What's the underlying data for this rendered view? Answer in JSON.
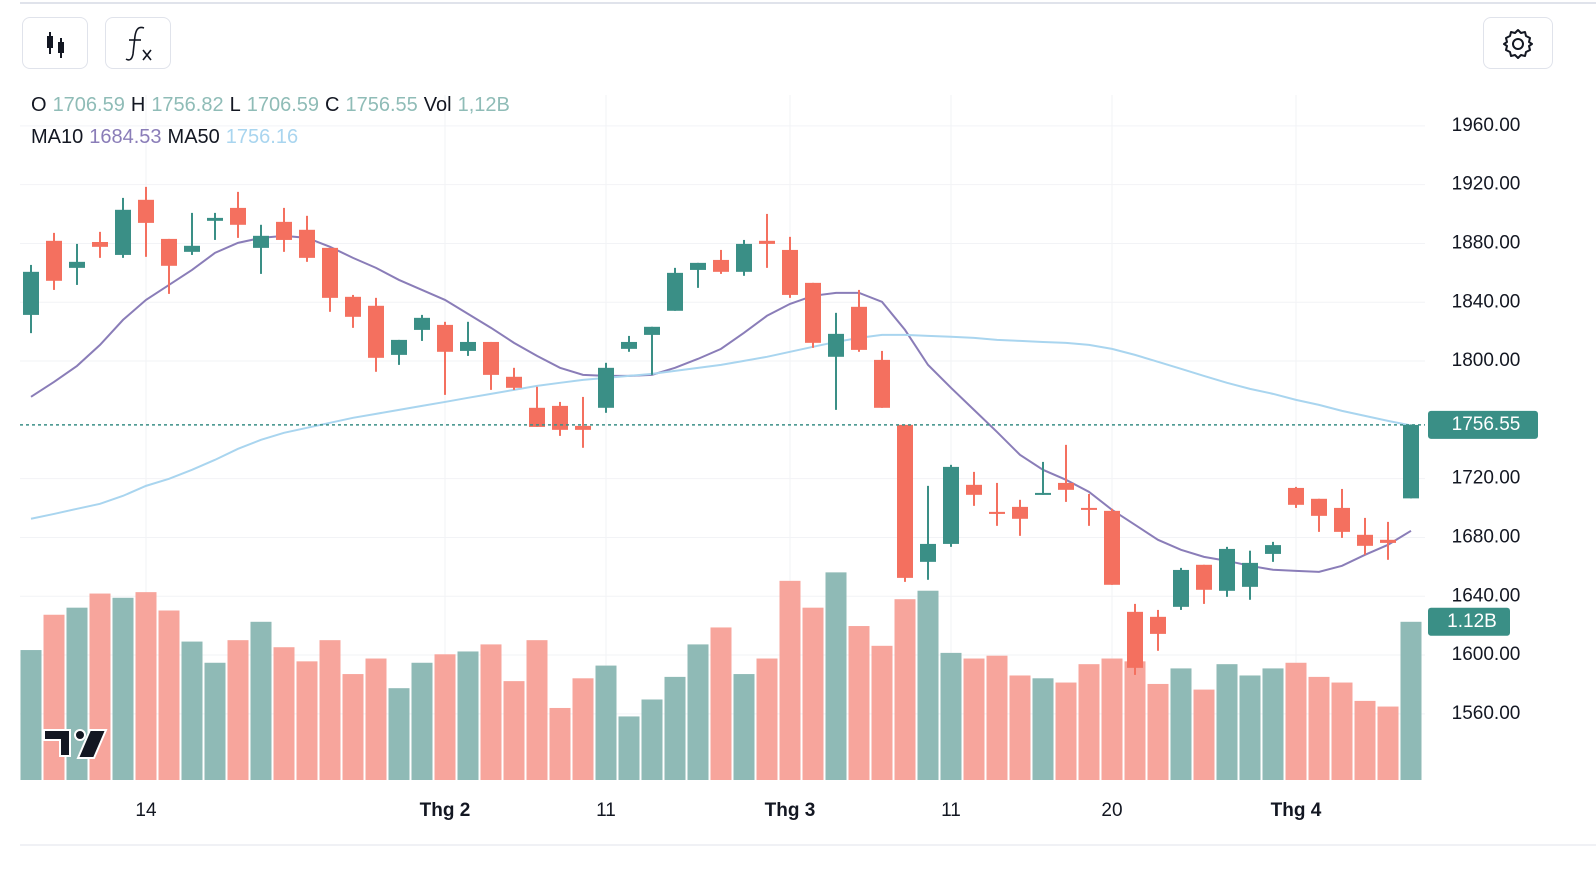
{
  "chart_data": {
    "type": "candlestick",
    "categories": [
      null,
      null,
      null,
      null,
      null,
      "14",
      null,
      null,
      null,
      null,
      null,
      null,
      null,
      null,
      null,
      null,
      null,
      null,
      "Thg 2",
      null,
      null,
      null,
      null,
      null,
      null,
      "11",
      null,
      null,
      null,
      null,
      null,
      null,
      null,
      "Thg 3",
      null,
      null,
      null,
      null,
      null,
      null,
      "11",
      null,
      null,
      null,
      null,
      null,
      null,
      "20",
      null,
      null,
      null,
      null,
      null,
      null,
      null,
      "Thg 4",
      null,
      null,
      null,
      null,
      null
    ],
    "open": [
      1831.4,
      1881.8,
      1863.4,
      1881.0,
      1872.2,
      1909.7,
      1883.1,
      1874.3,
      1895.4,
      1904.2,
      1877.0,
      1894.7,
      1889.3,
      1877.0,
      1843.7,
      1837.6,
      1804.2,
      1821.2,
      1824.6,
      1806.9,
      1813.0,
      1789.3,
      1768.2,
      1769.5,
      1755.9,
      1768.2,
      1808.3,
      1817.8,
      1834.2,
      1862.0,
      1868.8,
      1860.7,
      1881.8,
      1875.6,
      1853.2,
      1802.9,
      1836.9,
      1800.8,
      1756.6,
      1663.4,
      1675.6,
      1715.8,
      1697.4,
      1700.8,
      1709.0,
      1717.1,
      1700.1,
      1698.1,
      1629.4,
      1626.0,
      1632.8,
      1661.4,
      1643.7,
      1646.4,
      1668.8,
      1713.7,
      1706.3,
      1700.1,
      1681.8,
      1678.4,
      1706.59
    ],
    "high": [
      1865.4,
      1887.2,
      1879.7,
      1887.9,
      1911.0,
      1918.5,
      1883.1,
      1900.8,
      1900.8,
      1915.1,
      1892.7,
      1904.2,
      1898.8,
      1877.0,
      1845.0,
      1843.0,
      1814.4,
      1831.4,
      1826.7,
      1826.7,
      1813.0,
      1795.4,
      1782.5,
      1772.2,
      1775.6,
      1798.8,
      1817.1,
      1823.3,
      1863.4,
      1866.8,
      1875.6,
      1882.4,
      1900.1,
      1884.5,
      1853.2,
      1832.8,
      1848.4,
      1806.9,
      1756.6,
      1715.1,
      1729.4,
      1724.6,
      1717.1,
      1705.6,
      1731.4,
      1743.0,
      1709.6,
      1699.5,
      1634.8,
      1630.7,
      1659.3,
      1661.4,
      1673.6,
      1671.0,
      1677.0,
      1714.4,
      1706.3,
      1713.0,
      1693.3,
      1690.6,
      1756.82
    ],
    "low": [
      1819.0,
      1848.4,
      1851.8,
      1870.2,
      1870.2,
      1870.9,
      1845.7,
      1872.2,
      1882.4,
      1883.8,
      1859.3,
      1874.3,
      1867.5,
      1833.5,
      1822.6,
      1792.7,
      1797.4,
      1813.7,
      1777.0,
      1803.5,
      1780.4,
      1780.4,
      1755.2,
      1749.1,
      1741.0,
      1764.8,
      1806.3,
      1790.6,
      1834.2,
      1849.8,
      1859.3,
      1858.0,
      1863.4,
      1843.0,
      1809.0,
      1766.8,
      1806.3,
      1768.2,
      1649.8,
      1651.2,
      1673.6,
      1701.5,
      1687.9,
      1681.1,
      1709.0,
      1704.2,
      1687.9,
      1647.8,
      1586.5,
      1602.9,
      1630.7,
      1634.8,
      1639.6,
      1637.6,
      1663.4,
      1700.1,
      1683.8,
      1679.7,
      1668.2,
      1664.8,
      1706.59
    ],
    "close": [
      1860.7,
      1854.6,
      1867.5,
      1877.7,
      1902.9,
      1894.0,
      1864.8,
      1878.4,
      1897.4,
      1892.7,
      1885.2,
      1882.4,
      1870.2,
      1843.0,
      1830.1,
      1802.2,
      1814.4,
      1829.4,
      1806.3,
      1813.0,
      1790.6,
      1781.8,
      1755.2,
      1753.2,
      1753.2,
      1795.4,
      1813.0,
      1823.3,
      1860.0,
      1866.8,
      1860.7,
      1879.7,
      1879.7,
      1845.0,
      1812.4,
      1818.5,
      1807.6,
      1768.2,
      1652.5,
      1675.6,
      1728.0,
      1709.0,
      1696.0,
      1692.7,
      1710.3,
      1712.4,
      1698.8,
      1647.8,
      1591.3,
      1614.4,
      1657.9,
      1644.4,
      1672.2,
      1662.7,
      1674.8,
      1702.2,
      1694.7,
      1683.8,
      1674.3,
      1676.3,
      1756.55
    ],
    "volume": [
      0.92,
      1.17,
      1.22,
      1.32,
      1.29,
      1.33,
      1.2,
      0.98,
      0.83,
      0.99,
      1.12,
      0.94,
      0.84,
      0.99,
      0.75,
      0.86,
      0.65,
      0.83,
      0.89,
      0.91,
      0.96,
      0.7,
      0.99,
      0.51,
      0.72,
      0.81,
      0.45,
      0.57,
      0.73,
      0.96,
      1.08,
      0.75,
      0.86,
      1.41,
      1.22,
      1.47,
      1.09,
      0.95,
      1.28,
      1.34,
      0.9,
      0.86,
      0.88,
      0.74,
      0.72,
      0.69,
      0.82,
      0.86,
      0.84,
      0.68,
      0.79,
      0.64,
      0.82,
      0.74,
      0.79,
      0.83,
      0.73,
      0.69,
      0.56,
      0.52,
      1.12
    ],
    "ma": [
      {
        "name": "MA10",
        "color": "#8a7db8",
        "values": [
          1775.7,
          1785.8,
          1796.7,
          1811.0,
          1828.0,
          1841.6,
          1851.8,
          1862.0,
          1873.6,
          1880.4,
          1883.8,
          1885.2,
          1883.8,
          1877.7,
          1870.2,
          1863.4,
          1855.2,
          1848.4,
          1841.6,
          1832.1,
          1822.6,
          1812.4,
          1803.5,
          1795.4,
          1790.6,
          1789.9,
          1789.9,
          1790.6,
          1795.4,
          1801.5,
          1808.3,
          1819.2,
          1830.8,
          1838.9,
          1844.4,
          1846.4,
          1846.4,
          1840.3,
          1821.2,
          1797.4,
          1781.8,
          1766.8,
          1751.8,
          1736.2,
          1726.0,
          1719.2,
          1711.0,
          1698.8,
          1688.6,
          1678.4,
          1671.6,
          1666.8,
          1664.1,
          1660.7,
          1658.0,
          1657.3,
          1656.6,
          1660.7,
          1668.2,
          1675.0,
          1684.53
        ]
      },
      {
        "name": "MA50",
        "color": "#a9d5ef",
        "values": [
          1692.7,
          1696.0,
          1699.5,
          1702.9,
          1708.3,
          1715.1,
          1719.9,
          1726.0,
          1732.8,
          1740.3,
          1746.4,
          1751.2,
          1754.6,
          1758.0,
          1761.4,
          1764.1,
          1766.8,
          1769.5,
          1772.2,
          1775.0,
          1777.7,
          1780.4,
          1783.1,
          1785.2,
          1787.2,
          1788.6,
          1789.9,
          1791.3,
          1793.3,
          1795.4,
          1797.4,
          1800.1,
          1802.9,
          1806.3,
          1809.7,
          1813.0,
          1815.8,
          1817.8,
          1817.8,
          1817.1,
          1816.5,
          1815.8,
          1814.4,
          1813.7,
          1813.0,
          1812.4,
          1811.0,
          1808.3,
          1804.2,
          1799.5,
          1794.7,
          1789.9,
          1785.2,
          1781.1,
          1777.7,
          1773.6,
          1770.2,
          1766.1,
          1762.7,
          1759.3,
          1756.16
        ]
      }
    ],
    "up_color": "#3a8f86",
    "down_color": "#f4705f",
    "volume_up_color": "#8fbab6",
    "volume_down_color": "#f7a59c",
    "ylim": [
      1515,
      1981
    ],
    "yticks": [
      {
        "value": 1560,
        "label": "1560.00"
      },
      {
        "value": 1600,
        "label": "1600.00"
      },
      {
        "value": 1640,
        "label": "1640.00"
      },
      {
        "value": 1680,
        "label": "1680.00"
      },
      {
        "value": 1720,
        "label": "1720.00"
      },
      {
        "value": 1800,
        "label": "1800.00"
      },
      {
        "value": 1840,
        "label": "1840.00"
      },
      {
        "value": 1880,
        "label": "1880.00"
      },
      {
        "value": 1920,
        "label": "1920.00"
      },
      {
        "value": 1960,
        "label": "1960.00"
      }
    ],
    "vlim": [
      0,
      1.6
    ],
    "price_line": {
      "value": 1756.55,
      "label": "1756.55"
    },
    "volume_line": {
      "value": 1.12,
      "label": "1.12B"
    },
    "grid": true,
    "header": {
      "ohlc": [
        {
          "label": "O",
          "value": 1706.59
        },
        {
          "label": "H",
          "value": 1756.82
        },
        {
          "label": "L",
          "value": 1706.59
        },
        {
          "label": "C",
          "value": 1756.55
        },
        {
          "label": "Vol",
          "value": "1,12B"
        }
      ],
      "ohlc_color": "#8fbcb7",
      "ma": [
        {
          "label": "MA10",
          "value": 1684.53
        },
        {
          "label": "MA50",
          "value": 1756.16
        }
      ]
    }
  }
}
